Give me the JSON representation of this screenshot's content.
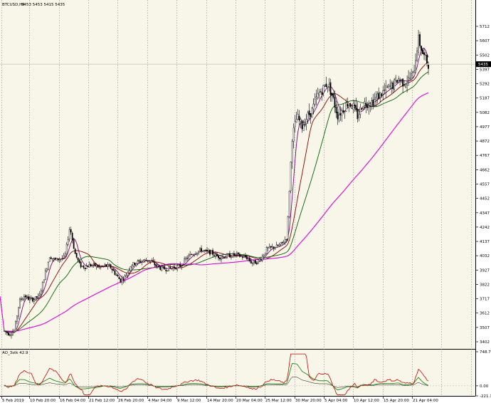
{
  "main_header": {
    "symbol": "BTCUSD,H4",
    "values": "5453 5453 5415 5435"
  },
  "indicator_header": {
    "name": "AO_3stk 42.9"
  },
  "current_price": "5435",
  "colors": {
    "background": "#ffffff",
    "plot_background": "#f8f6e8",
    "candles": "#000000",
    "ma_fast": "#800080",
    "ma_mid": "#8b0000",
    "ma_slow": "#006400",
    "ma_long": "#e000e0",
    "ind_red": "#cc0000",
    "ind_green": "#008000",
    "ind_black": "#000000",
    "grid": "#8c8c8c"
  },
  "price_axis": {
    "ticks": [
      "5712",
      "5607",
      "5502",
      "5397",
      "5292",
      "5187",
      "5082",
      "4977",
      "4872",
      "4767",
      "4662",
      "4557",
      "4452",
      "4347",
      "4242",
      "4137",
      "4032",
      "3927",
      "3822",
      "3717",
      "3612",
      "3507",
      "3402"
    ]
  },
  "indicator_axis": {
    "ticks": [
      "748.7",
      "0.00",
      "-221.1"
    ]
  },
  "time_axis": {
    "ticks": [
      "5 Feb 2019",
      "10 Feb 20:00",
      "16 Feb 04:00",
      "21 Feb 12:00",
      "26 Feb 20:00",
      "4 Mar 04:00",
      "9 Mar 12:00",
      "14 Mar 20:00",
      "20 Mar 04:00",
      "25 Mar 12:00",
      "30 Mar 20:00",
      "5 Apr 04:00",
      "10 Apr 12:00",
      "15 Apr 20:00",
      "21 Apr 04:00"
    ]
  },
  "chart_data": {
    "type": "candlestick",
    "title": "BTCUSD,H4",
    "ylim": [
      3350,
      5760
    ],
    "y_ticks": [
      5712,
      5607,
      5502,
      5397,
      5292,
      5187,
      5082,
      4977,
      4872,
      4767,
      4662,
      4557,
      4452,
      4347,
      4242,
      4137,
      4032,
      3927,
      3822,
      3717,
      3612,
      3507,
      3402
    ],
    "x_categories": [
      "5 Feb 2019",
      "10 Feb 20:00",
      "16 Feb 04:00",
      "21 Feb 12:00",
      "26 Feb 20:00",
      "4 Mar 04:00",
      "9 Mar 12:00",
      "14 Mar 20:00",
      "20 Mar 04:00",
      "25 Mar 12:00",
      "30 Mar 20:00",
      "5 Apr 04:00",
      "10 Apr 12:00",
      "15 Apr 20:00",
      "21 Apr 04:00"
    ],
    "price_series": [
      [
        0,
        3480
      ],
      [
        1,
        3460
      ],
      [
        2,
        3480
      ],
      [
        3,
        3700
      ],
      [
        4,
        3740
      ],
      [
        5,
        3710
      ],
      [
        6,
        3715
      ],
      [
        7,
        3740
      ],
      [
        8,
        3890
      ],
      [
        9,
        4030
      ],
      [
        10,
        4000
      ],
      [
        11,
        4010
      ],
      [
        12,
        4020
      ],
      [
        13,
        4245
      ],
      [
        14,
        4050
      ],
      [
        15,
        3960
      ],
      [
        16,
        3950
      ],
      [
        17,
        3965
      ],
      [
        18,
        3960
      ],
      [
        19,
        3945
      ],
      [
        20,
        3960
      ],
      [
        21,
        3950
      ],
      [
        22,
        3900
      ],
      [
        23,
        3850
      ],
      [
        24,
        3880
      ],
      [
        25,
        3960
      ],
      [
        26,
        3980
      ],
      [
        27,
        3990
      ],
      [
        28,
        4000
      ],
      [
        29,
        3995
      ],
      [
        30,
        3960
      ],
      [
        31,
        3940
      ],
      [
        32,
        3935
      ],
      [
        33,
        3940
      ],
      [
        34,
        3950
      ],
      [
        35,
        3960
      ],
      [
        36,
        4010
      ],
      [
        37,
        4040
      ],
      [
        38,
        4060
      ],
      [
        39,
        4075
      ],
      [
        40,
        4060
      ],
      [
        41,
        4055
      ],
      [
        42,
        4030
      ],
      [
        43,
        4020
      ],
      [
        44,
        4030
      ],
      [
        45,
        4035
      ],
      [
        46,
        4040
      ],
      [
        47,
        4025
      ],
      [
        48,
        4020
      ],
      [
        49,
        3980
      ],
      [
        50,
        3985
      ],
      [
        51,
        4020
      ],
      [
        52,
        4080
      ],
      [
        53,
        4090
      ],
      [
        54,
        4100
      ],
      [
        55,
        4120
      ],
      [
        56,
        4170
      ],
      [
        57,
        4900
      ],
      [
        58,
        5050
      ],
      [
        59,
        4980
      ],
      [
        60,
        5050
      ],
      [
        61,
        5100
      ],
      [
        62,
        5200
      ],
      [
        63,
        5250
      ],
      [
        64,
        5300
      ],
      [
        65,
        5200
      ],
      [
        66,
        5060
      ],
      [
        67,
        5100
      ],
      [
        68,
        5150
      ],
      [
        69,
        5130
      ],
      [
        70,
        5050
      ],
      [
        71,
        5150
      ],
      [
        72,
        5150
      ],
      [
        73,
        5160
      ],
      [
        74,
        5200
      ],
      [
        75,
        5230
      ],
      [
        76,
        5260
      ],
      [
        77,
        5280
      ],
      [
        78,
        5330
      ],
      [
        79,
        5300
      ],
      [
        80,
        5320
      ],
      [
        81,
        5360
      ],
      [
        82,
        5620
      ],
      [
        83,
        5500
      ],
      [
        84,
        5435
      ]
    ],
    "indicator": {
      "name": "AO_3stk 42.9",
      "ylim": [
        -221.1,
        748.7
      ]
    }
  }
}
